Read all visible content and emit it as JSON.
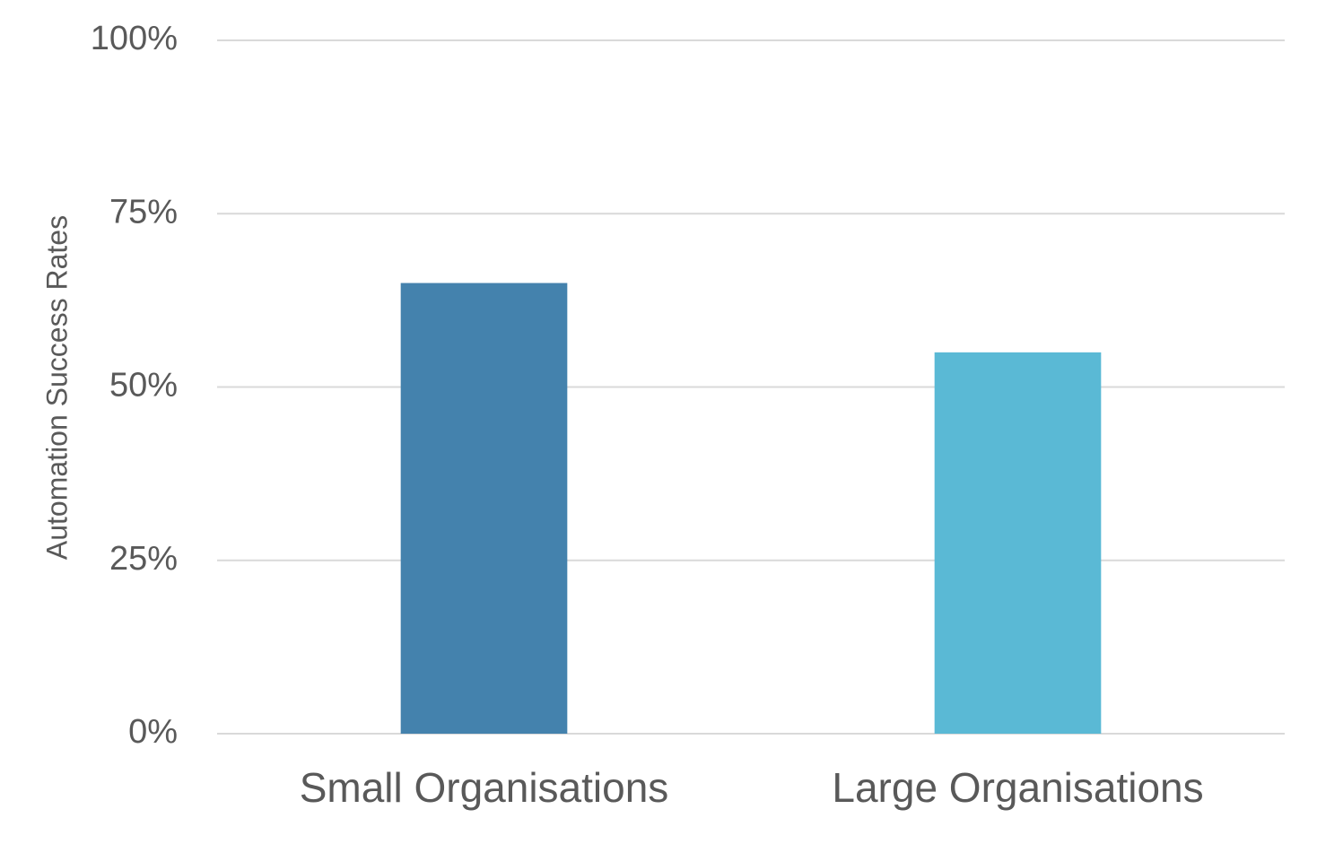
{
  "chart_data": {
    "type": "bar",
    "y_label": "Automation Success Rates",
    "categories": [
      "Small Organisations",
      "Large Organisations"
    ],
    "values": [
      65,
      55
    ],
    "colors": [
      "#4482ad",
      "#5ab9d5"
    ],
    "ylim": [
      0,
      100
    ],
    "yticks": [
      {
        "value": 0,
        "label": "0%"
      },
      {
        "value": 25,
        "label": "25%"
      },
      {
        "value": 50,
        "label": "50%"
      },
      {
        "value": 75,
        "label": "75%"
      },
      {
        "value": 100,
        "label": "100%"
      }
    ],
    "grid": true
  }
}
